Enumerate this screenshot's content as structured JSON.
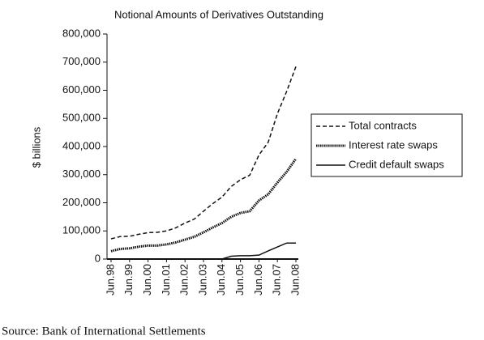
{
  "chart_data": {
    "type": "line",
    "title": "Notional Amounts of Derivatives Outstanding",
    "y_label": "$ billions",
    "source": "Source: Bank of International Settlements",
    "categories": [
      "Jun.98",
      null,
      "Jun.99",
      null,
      "Jun.00",
      null,
      "Jun.01",
      null,
      "Jun.02",
      null,
      "Jun.03",
      null,
      "Jun.04",
      null,
      "Jun.05",
      null,
      "Jun.06",
      null,
      "Jun.07",
      null,
      "Jun.08"
    ],
    "series": [
      {
        "name": "Total contracts",
        "color": "#111111",
        "style": "dashed",
        "values": [
          72000,
          80000,
          81000,
          88000,
          94000,
          95000,
          100000,
          111000,
          128000,
          142000,
          170000,
          197000,
          220000,
          258000,
          282000,
          298000,
          370000,
          415000,
          517000,
          596000,
          684000
        ]
      },
      {
        "name": "Interest rate swaps",
        "color": "#111111",
        "style": "dotted",
        "values": [
          28000,
          36000,
          38000,
          44000,
          48000,
          48000,
          52000,
          59000,
          69000,
          79000,
          95000,
          112000,
          128000,
          150000,
          164000,
          170000,
          208000,
          230000,
          272000,
          310000,
          357000
        ]
      },
      {
        "name": "Credit default swaps",
        "color": "#111111",
        "style": "solid",
        "values": [
          0,
          0,
          0,
          0,
          0,
          0,
          0,
          0,
          0,
          0,
          0,
          0,
          0,
          10000,
          12000,
          12000,
          14000,
          29000,
          43000,
          57000,
          57000
        ]
      }
    ],
    "ylim": [
      0,
      800000
    ],
    "yticks": [
      0,
      {
        "value": 100000,
        "label": "100,000"
      },
      {
        "value": 200000,
        "label": "200,000"
      },
      {
        "value": 300000,
        "label": "300,000"
      },
      {
        "value": 400000,
        "label": "400,000"
      },
      {
        "value": 500000,
        "label": "500,000"
      },
      {
        "value": 600000,
        "label": "600,000"
      },
      {
        "value": 700000,
        "label": "700,000"
      },
      {
        "value": 800000,
        "label": "800,000"
      }
    ],
    "legend": "right"
  }
}
